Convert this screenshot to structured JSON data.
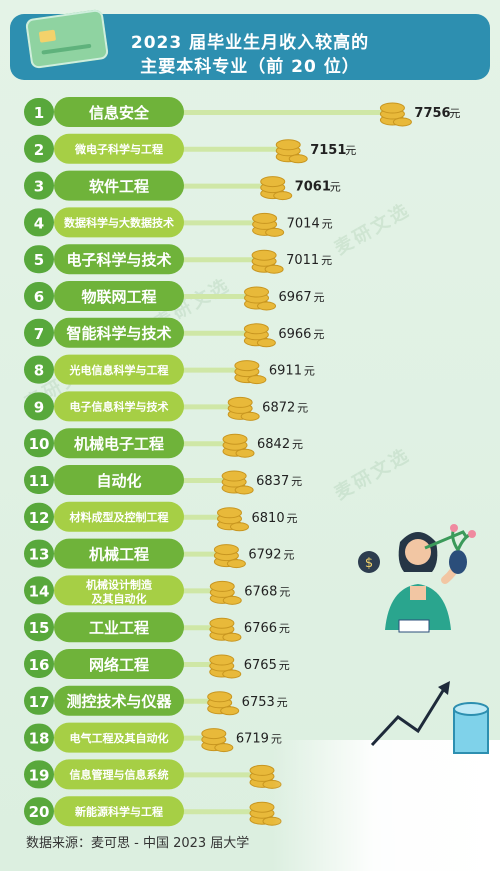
{
  "header": {
    "title_line1": "2023 届毕业生月收入较高的",
    "title_line2": "主要本科专业（前 20 位）"
  },
  "footer": {
    "source": "数据来源：麦可思 - 中国 2023 届大学"
  },
  "watermark": "麦研文选",
  "colors": {
    "header": "#2d8fb0",
    "rank_badge": "#58a83b",
    "label_pill": "#a6cf45",
    "label_pill_highlight": "#6fb33a",
    "coin": "#e8b93a",
    "background": "#dff0e3"
  },
  "icons": [
    "credit-card-icon",
    "coin-stack-icon",
    "person-holding-plant-icon",
    "growth-arrow-icon",
    "cylinder-icon"
  ],
  "chart_data": {
    "type": "bar",
    "orientation": "horizontal",
    "unit": "元",
    "categories": [
      "信息安全",
      "微电子科学与工程",
      "软件工程",
      "数据科学与大数据技术",
      "电子科学与技术",
      "物联网工程",
      "智能科学与技术",
      "光电信息科学与工程",
      "电子信息科学与技术",
      "机械电子工程",
      "自动化",
      "材料成型及控制工程",
      "机械工程",
      "机械设计制造\n及其自动化",
      "工业工程",
      "网络工程",
      "测控技术与仪器",
      "电气工程及其自动化",
      "信息管理与信息系统",
      "新能源科学与工程"
    ],
    "ranks": [
      "1",
      "2",
      "3",
      "4",
      "5",
      "6",
      "7",
      "8",
      "9",
      "10",
      "11",
      "12",
      "13",
      "14",
      "15",
      "16",
      "17",
      "18",
      "19",
      "20"
    ],
    "values": [
      7756,
      7151,
      7061,
      7014,
      7011,
      6967,
      6966,
      6911,
      6872,
      6842,
      6837,
      6810,
      6792,
      6768,
      6766,
      6765,
      6753,
      6719,
      null,
      null
    ],
    "value_labels": [
      "7756",
      "7151",
      "7061",
      "7014",
      "7011",
      "6967",
      "6966",
      "6911",
      "6872",
      "6842",
      "6837",
      "6810",
      "6792",
      "6768",
      "6766",
      "6765",
      "6753",
      "6719",
      "",
      ""
    ],
    "highlight": [
      true,
      false,
      true,
      false,
      true,
      true,
      true,
      false,
      false,
      true,
      true,
      false,
      true,
      false,
      true,
      true,
      true,
      false,
      false,
      false
    ]
  }
}
